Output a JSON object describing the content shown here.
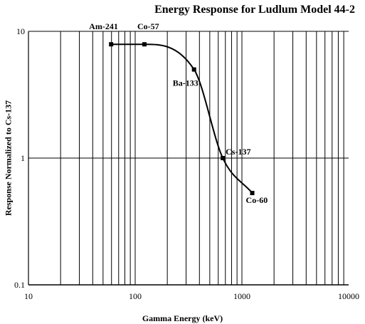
{
  "chart_data": {
    "type": "line",
    "title": "Energy Response for Ludlum Model 44-2",
    "xlabel": "Gamma Energy (keV)",
    "ylabel": "Response Normalized to Cs-137",
    "x_scale": "log",
    "y_scale": "log",
    "xlim": [
      10,
      10000
    ],
    "ylim": [
      0.1,
      10
    ],
    "x_ticks": [
      "10",
      "100",
      "1000",
      "10000"
    ],
    "y_ticks": [
      "0.1",
      "1",
      "10"
    ],
    "grid": {
      "x_major": true,
      "x_minor": true,
      "y_major": true
    },
    "series": [
      {
        "x": [
          59.5,
          122,
          356,
          662,
          1250
        ],
        "y": [
          7.9,
          7.9,
          5.0,
          1.0,
          0.53
        ],
        "point_labels": [
          "Am-241",
          "Co-57",
          "Ba-133",
          "Cs-137",
          "Co-60"
        ]
      }
    ]
  }
}
